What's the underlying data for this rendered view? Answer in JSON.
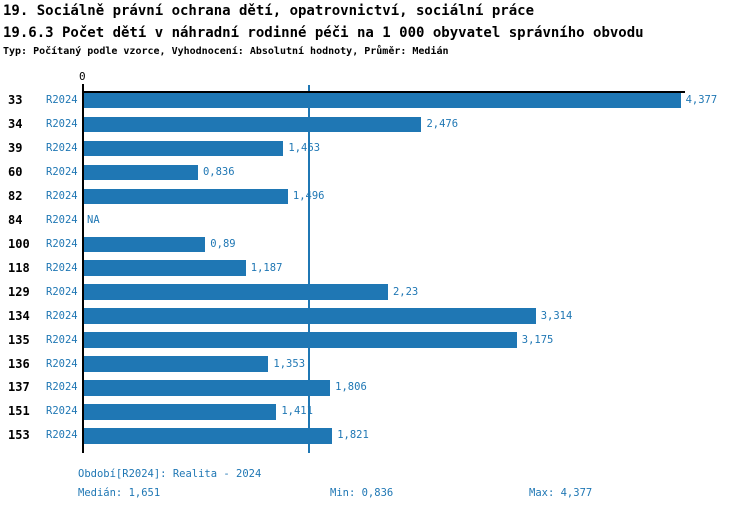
{
  "header": {
    "title_line1": "19. Sociálně právní ochrana dětí, opatrovnictví, sociální práce",
    "title_line2": "19.6.3 Počet dětí v náhradní rodinné péči na 1 000 obyvatel správního obvodu",
    "subtitle": "Typ: Počítaný podle vzorce, Vyhodnocení: Absolutní hodnoty, Průměr: Medián"
  },
  "chart_data": {
    "type": "bar",
    "orientation": "horizontal",
    "title": "19.6.3 Počet dětí v náhradní rodinné péči na 1 000 obyvatel správního obvodu",
    "xlabel": "",
    "ylabel": "",
    "xlim": [
      0,
      4.4
    ],
    "x_origin_tick_label": "0",
    "grid": false,
    "series_label": "R2024",
    "categories": [
      "33",
      "34",
      "39",
      "60",
      "82",
      "84",
      "100",
      "118",
      "129",
      "134",
      "135",
      "136",
      "137",
      "151",
      "153"
    ],
    "values": [
      4.377,
      2.476,
      1.463,
      0.836,
      1.496,
      null,
      0.89,
      1.187,
      2.23,
      3.314,
      3.175,
      1.353,
      1.806,
      1.411,
      1.821
    ],
    "value_labels": [
      "4,377",
      "2,476",
      "1,463",
      "0,836",
      "1,496",
      "NA",
      "0,89",
      "1,187",
      "2,23",
      "3,314",
      "3,175",
      "1,353",
      "1,806",
      "1,411",
      "1,821"
    ],
    "median_value": 1.651,
    "colors": {
      "bar": "#1f77b4",
      "accent_text": "#1f77b4",
      "median_line": "#1f77b4",
      "axis": "#000000",
      "title_text": "#000000",
      "background": "#ffffff"
    }
  },
  "footer": {
    "period": "Období[R2024]: Realita - 2024",
    "median": "Medián: 1,651",
    "min": "Min: 0,836",
    "max": "Max: 4,377"
  }
}
